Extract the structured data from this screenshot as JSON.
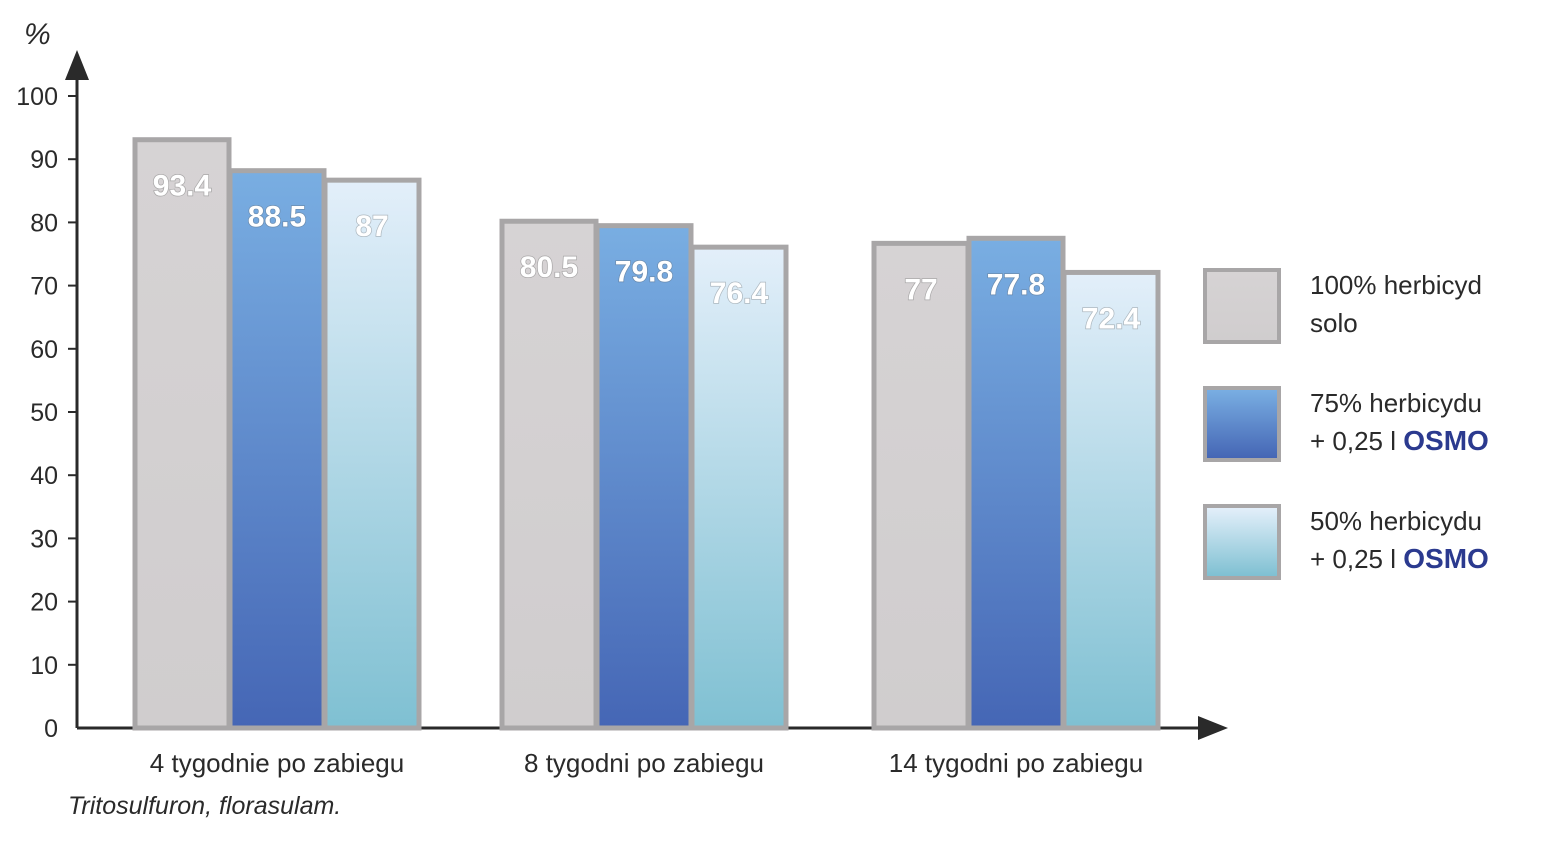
{
  "chart_data": {
    "type": "bar",
    "ylabel": "%",
    "ylim": [
      0,
      100
    ],
    "yticks": [
      "0",
      "10",
      "20",
      "30",
      "40",
      "50",
      "60",
      "70",
      "80",
      "90",
      "100"
    ],
    "categories": [
      "4 tygodnie po zabiegu",
      "8 tygodni po zabiegu",
      "14 tygodni po zabiegu"
    ],
    "series": [
      {
        "name": "100% herbicyd solo",
        "values": [
          93.4,
          80.5,
          77
        ],
        "labels": [
          "93.4",
          "80.5",
          "77"
        ],
        "color": "#d3d0d1"
      },
      {
        "name": "75% herbicydu + 0,25 l OSMO",
        "values": [
          88.5,
          79.8,
          77.8
        ],
        "labels": [
          "88.5",
          "79.8",
          "77.8"
        ],
        "color": "#4a6cb8"
      },
      {
        "name": "50% herbicydu + 0,25 l OSMO",
        "values": [
          87,
          76.4,
          72.4
        ],
        "labels": [
          "87",
          "76.4",
          "72.4"
        ],
        "color": "#a8d4e2"
      }
    ],
    "legend_position": "right",
    "grid": false
  },
  "legend": [
    {
      "line1": "100% herbicyd",
      "line2_prefix": "solo",
      "line2_brand": ""
    },
    {
      "line1": "75% herbicydu",
      "line2_prefix": "+ 0,25 l ",
      "line2_brand": "OSMO"
    },
    {
      "line1": "50% herbicydu",
      "line2_prefix": "+ 0,25 l ",
      "line2_brand": "OSMO"
    }
  ],
  "footnote": "Tritosulfuron, florasulam.",
  "colors": {
    "border": "#a8a6a7",
    "gray_fill": "#d3d0d1",
    "blue_top": "#79aee2",
    "blue_bottom": "#4566b5",
    "light_top": "#e3effa",
    "light_bottom": "#7fc0d2",
    "brand": "#2b3a8f"
  }
}
